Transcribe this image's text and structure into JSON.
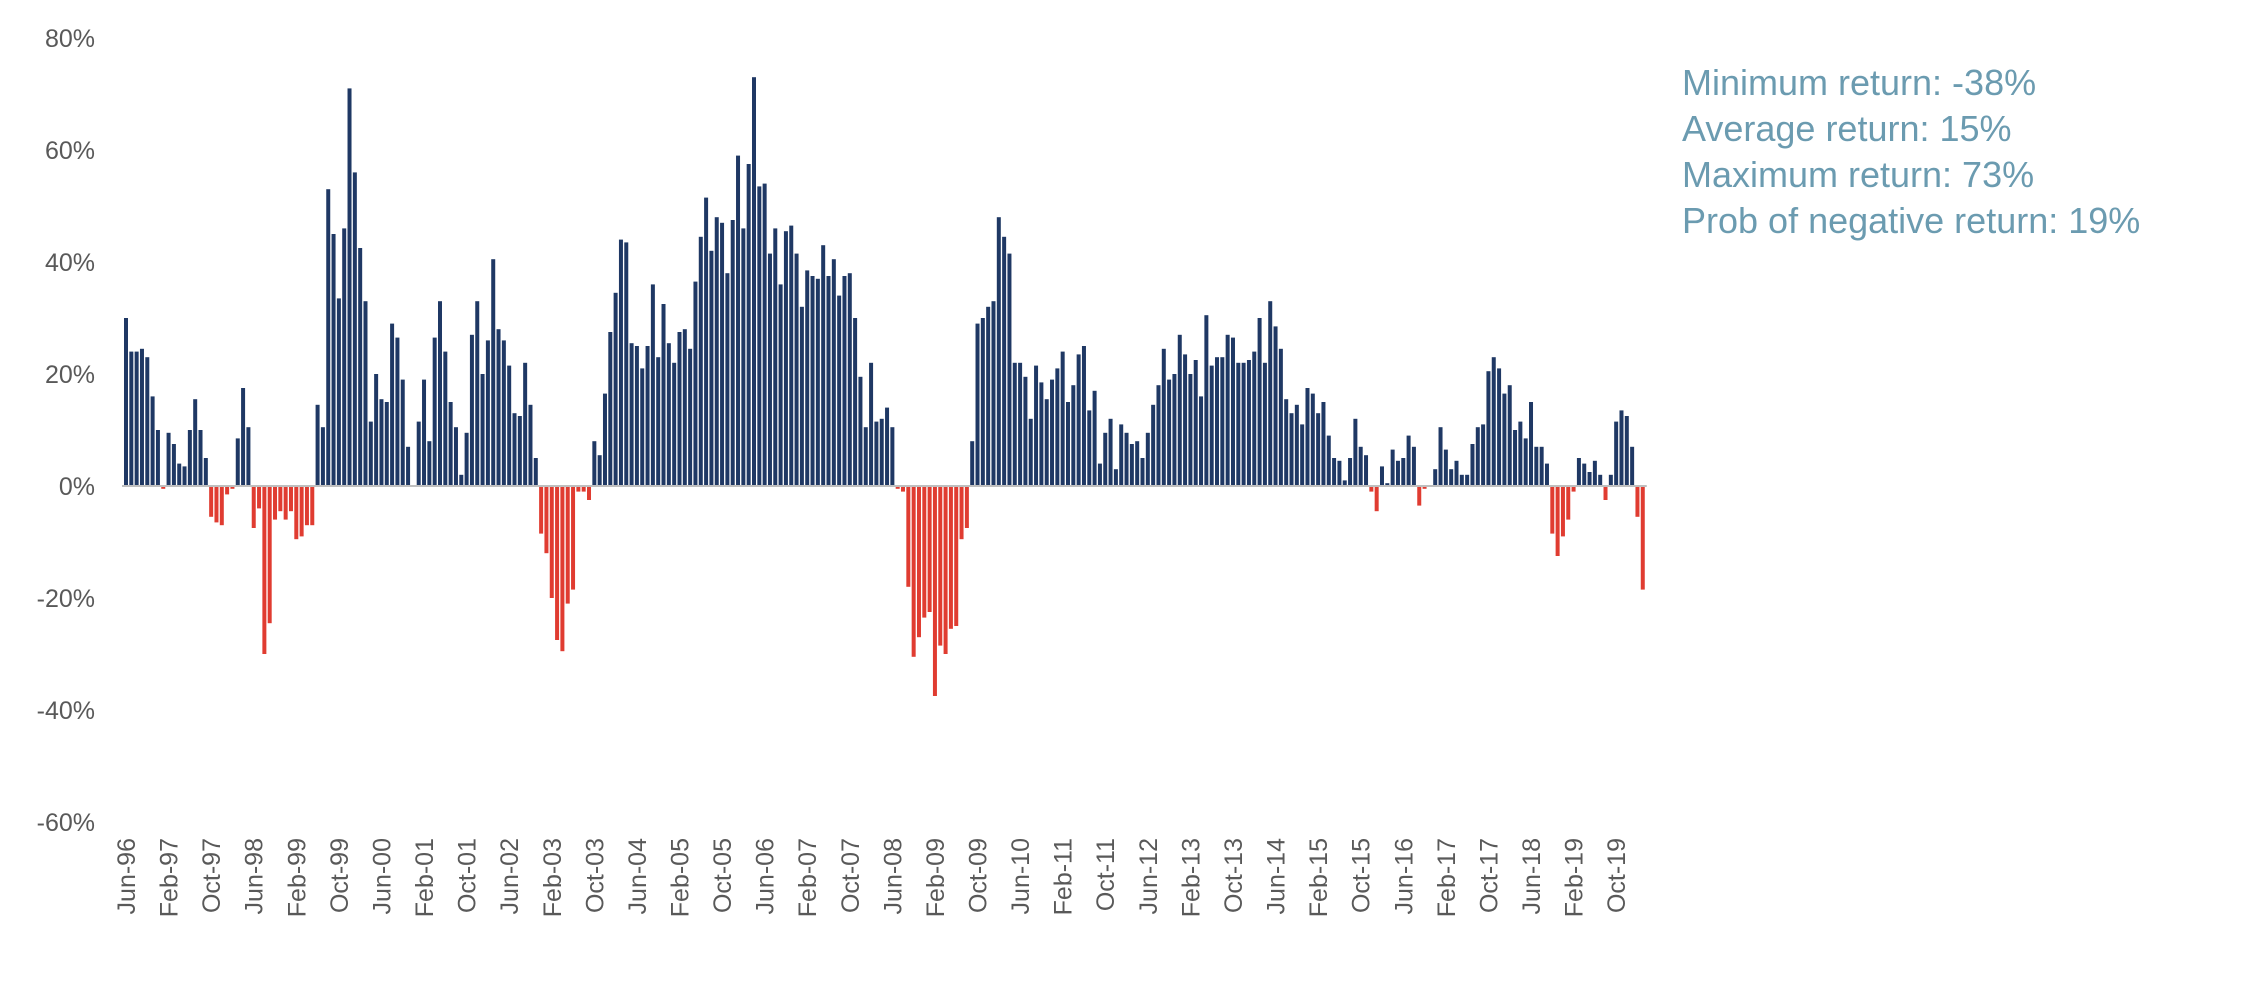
{
  "chart_data": {
    "type": "bar",
    "title": "",
    "xlabel": "",
    "ylabel": "",
    "ylim": [
      -0.6,
      0.8
    ],
    "y_ticks": [
      "80%",
      "60%",
      "40%",
      "20%",
      "0%",
      "-20%",
      "-40%",
      "-60%"
    ],
    "y_tick_values": [
      0.8,
      0.6,
      0.4,
      0.2,
      0.0,
      -0.2,
      -0.4,
      -0.6
    ],
    "grid": false,
    "colors": {
      "positive": "#1f3864",
      "negative": "#e03c31",
      "baseline": "#bfbfbf",
      "stats_text": "#6b9bb0"
    },
    "x_tick_labels": [
      "Jun-96",
      "Feb-97",
      "Oct-97",
      "Jun-98",
      "Feb-99",
      "Oct-99",
      "Jun-00",
      "Feb-01",
      "Oct-01",
      "Jun-02",
      "Feb-03",
      "Oct-03",
      "Jun-04",
      "Feb-05",
      "Oct-05",
      "Jun-06",
      "Feb-07",
      "Oct-07",
      "Jun-08",
      "Feb-09",
      "Oct-09",
      "Jun-10",
      "Feb-11",
      "Oct-11",
      "Jun-12",
      "Feb-13",
      "Oct-13",
      "Jun-14",
      "Feb-15",
      "Oct-15",
      "Jun-16",
      "Feb-17",
      "Oct-17",
      "Jun-18",
      "Feb-19",
      "Oct-19"
    ],
    "x_start": "Jun-96",
    "x_end": "Mar-20",
    "values": [
      0.3,
      0.24,
      0.24,
      0.245,
      0.23,
      0.16,
      0.1,
      -0.005,
      0.095,
      0.075,
      0.04,
      0.035,
      0.1,
      0.155,
      0.1,
      0.05,
      -0.055,
      -0.065,
      -0.07,
      -0.015,
      -0.005,
      0.085,
      0.175,
      0.105,
      -0.075,
      -0.04,
      -0.3,
      -0.245,
      -0.06,
      -0.045,
      -0.06,
      -0.045,
      -0.095,
      -0.09,
      -0.07,
      -0.07,
      0.145,
      0.105,
      0.53,
      0.45,
      0.335,
      0.46,
      0.71,
      0.56,
      0.425,
      0.33,
      0.115,
      0.2,
      0.155,
      0.15,
      0.29,
      0.265,
      0.19,
      0.07,
      0.0,
      0.115,
      0.19,
      0.08,
      0.265,
      0.33,
      0.24,
      0.15,
      0.105,
      0.02,
      0.095,
      0.27,
      0.33,
      0.2,
      0.26,
      0.405,
      0.28,
      0.26,
      0.215,
      0.13,
      0.125,
      0.22,
      0.145,
      0.05,
      -0.085,
      -0.12,
      -0.2,
      -0.275,
      -0.295,
      -0.21,
      -0.185,
      -0.01,
      -0.01,
      -0.025,
      0.08,
      0.055,
      0.165,
      0.275,
      0.345,
      0.44,
      0.435,
      0.255,
      0.25,
      0.21,
      0.25,
      0.36,
      0.23,
      0.325,
      0.255,
      0.22,
      0.275,
      0.28,
      0.245,
      0.365,
      0.445,
      0.515,
      0.42,
      0.48,
      0.47,
      0.38,
      0.475,
      0.59,
      0.46,
      0.575,
      0.73,
      0.535,
      0.54,
      0.415,
      0.46,
      0.36,
      0.455,
      0.465,
      0.415,
      0.32,
      0.385,
      0.375,
      0.37,
      0.43,
      0.375,
      0.405,
      0.34,
      0.375,
      0.38,
      0.3,
      0.195,
      0.105,
      0.22,
      0.115,
      0.12,
      0.14,
      0.105,
      -0.005,
      -0.01,
      -0.18,
      -0.305,
      -0.27,
      -0.235,
      -0.225,
      -0.375,
      -0.285,
      -0.3,
      -0.255,
      -0.25,
      -0.095,
      -0.075,
      0.08,
      0.29,
      0.3,
      0.32,
      0.33,
      0.48,
      0.445,
      0.415,
      0.22,
      0.22,
      0.195,
      0.12,
      0.215,
      0.185,
      0.155,
      0.19,
      0.21,
      0.24,
      0.15,
      0.18,
      0.235,
      0.25,
      0.135,
      0.17,
      0.04,
      0.095,
      0.12,
      0.03,
      0.11,
      0.095,
      0.075,
      0.08,
      0.05,
      0.095,
      0.145,
      0.18,
      0.245,
      0.19,
      0.2,
      0.27,
      0.235,
      0.2,
      0.225,
      0.16,
      0.305,
      0.215,
      0.23,
      0.23,
      0.27,
      0.265,
      0.22,
      0.22,
      0.225,
      0.24,
      0.3,
      0.22,
      0.33,
      0.285,
      0.245,
      0.155,
      0.13,
      0.145,
      0.11,
      0.175,
      0.165,
      0.13,
      0.15,
      0.09,
      0.05,
      0.045,
      0.01,
      0.05,
      0.12,
      0.07,
      0.055,
      -0.01,
      -0.045,
      0.035,
      0.005,
      0.065,
      0.045,
      0.05,
      0.09,
      0.07,
      -0.035,
      -0.005,
      0.0,
      0.03,
      0.105,
      0.065,
      0.03,
      0.045,
      0.02,
      0.02,
      0.075,
      0.105,
      0.11,
      0.205,
      0.23,
      0.21,
      0.165,
      0.18,
      0.1,
      0.115,
      0.085,
      0.15,
      0.07,
      0.07,
      0.04,
      -0.085,
      -0.125,
      -0.09,
      -0.06,
      -0.01,
      0.05,
      0.04,
      0.025,
      0.045,
      0.02,
      -0.025,
      0.02,
      0.115,
      0.135,
      0.125,
      0.07,
      -0.055,
      -0.185
    ]
  },
  "stats": {
    "min_line": "Minimum return:  -38%",
    "avg_line": "Average return:  15%",
    "max_line": "Maximum return:  73%",
    "prob_line": "Prob of negative return:  19%"
  }
}
